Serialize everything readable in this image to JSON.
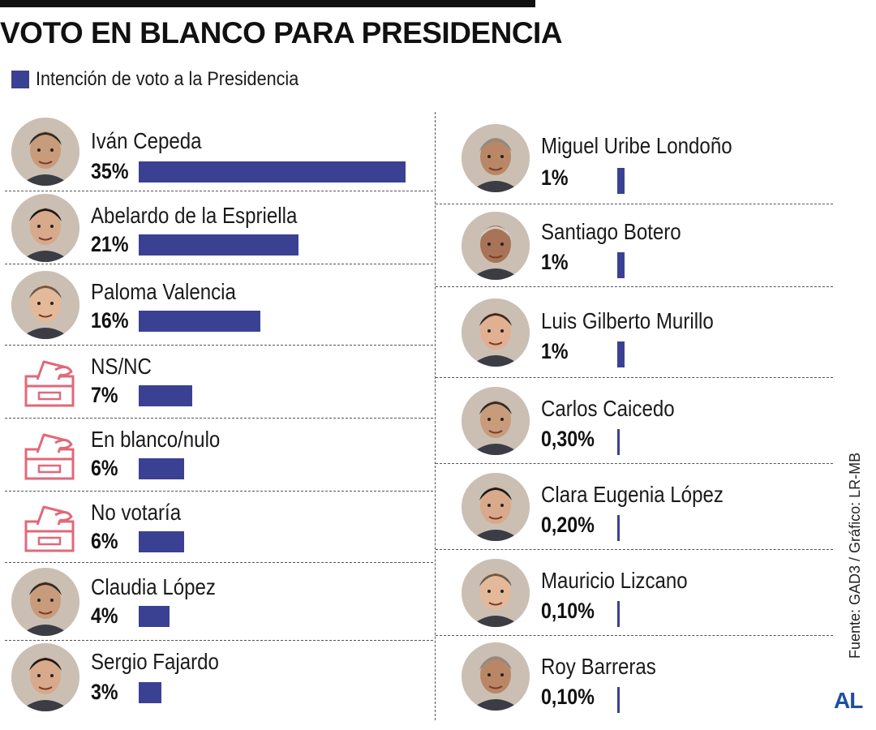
{
  "header": {
    "title": "VOTO EN BLANCO PARA PRESIDENCIA",
    "legend_label": "Intención de voto a la Presidencia"
  },
  "colors": {
    "bar": "#3b4192",
    "ballot_icon": "#e0697a"
  },
  "source": "Fuente: GAD3 / Gráfico: LR-MB",
  "logo": "AL",
  "chart_data": {
    "type": "bar",
    "orientation": "horizontal",
    "title": "VOTO EN BLANCO PARA PRESIDENCIA",
    "series": [
      {
        "name": "Intención de voto a la Presidencia"
      }
    ],
    "legend_position": "top-left",
    "left_column": [
      {
        "name": "Iván Cepeda",
        "value": 35,
        "label": "35%",
        "icon": "avatar"
      },
      {
        "name": "Abelardo de la Espriella",
        "value": 21,
        "label": "21%",
        "icon": "avatar"
      },
      {
        "name": "Paloma Valencia",
        "value": 16,
        "label": "16%",
        "icon": "avatar"
      },
      {
        "name": "NS/NC",
        "value": 7,
        "label": "7%",
        "icon": "ballot-box-icon"
      },
      {
        "name": "En blanco/nulo",
        "value": 6,
        "label": "6%",
        "icon": "ballot-box-icon"
      },
      {
        "name": "No votaría",
        "value": 6,
        "label": "6%",
        "icon": "ballot-box-icon"
      },
      {
        "name": "Claudia López",
        "value": 4,
        "label": "4%",
        "icon": "avatar"
      },
      {
        "name": "Sergio Fajardo",
        "value": 3,
        "label": "3%",
        "icon": "avatar"
      }
    ],
    "right_column": [
      {
        "name": "Miguel Uribe Londoño",
        "value": 1,
        "label": "1%",
        "icon": "avatar"
      },
      {
        "name": "Santiago Botero",
        "value": 1,
        "label": "1%",
        "icon": "avatar"
      },
      {
        "name": "Luis Gilberto Murillo",
        "value": 1,
        "label": "1%",
        "icon": "avatar"
      },
      {
        "name": "Carlos Caicedo",
        "value": 0.3,
        "label": "0,30%",
        "icon": "avatar"
      },
      {
        "name": "Clara Eugenia López",
        "value": 0.2,
        "label": "0,20%",
        "icon": "avatar"
      },
      {
        "name": "Mauricio Lizcano",
        "value": 0.1,
        "label": "0,10%",
        "icon": "avatar"
      },
      {
        "name": "Roy Barreras",
        "value": 0.1,
        "label": "0,10%",
        "icon": "avatar"
      }
    ]
  }
}
